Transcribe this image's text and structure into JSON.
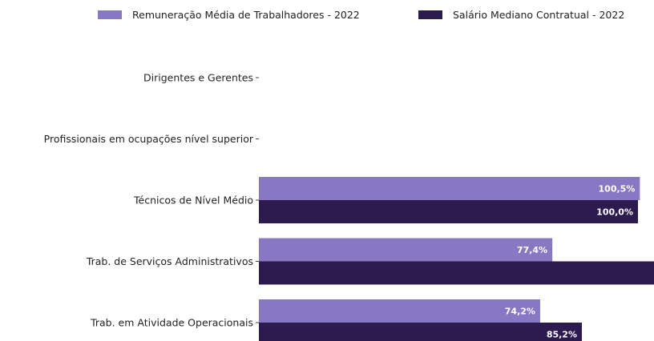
{
  "chart_data": {
    "type": "bar",
    "orientation": "horizontal",
    "categories": [
      "Dirigentes e Gerentes",
      "Profissionais em ocupações nível superior",
      "Técnicos de Nível Médio",
      "Trab. de Serviços Administrativos",
      "Trab. em Atividade Operacionais"
    ],
    "series": [
      {
        "name": "Remuneração Média de Trabalhadores - 2022",
        "color": "#8878c3",
        "values": [
          null,
          null,
          100.5,
          77.4,
          74.2
        ],
        "labels": [
          "",
          "",
          "100,5%",
          "77,4%",
          "74,2%"
        ]
      },
      {
        "name": "Salário Mediano Contratual - 2022",
        "color": "#2d1a4f",
        "values": [
          null,
          null,
          100.0,
          107.0,
          85.2
        ],
        "labels": [
          "",
          "",
          "100,0%",
          "",
          "85,2%"
        ]
      }
    ],
    "legend_position": "top-right",
    "grid": false
  }
}
